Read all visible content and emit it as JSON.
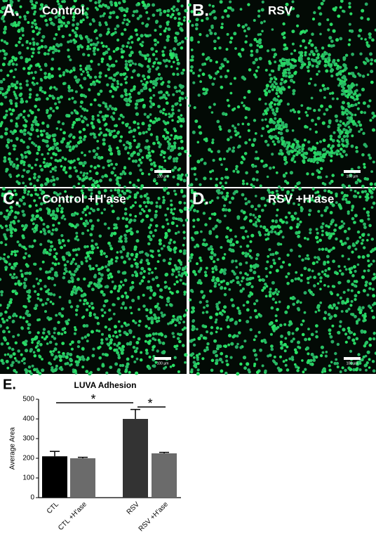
{
  "panels": [
    {
      "letter": "A.",
      "title": "Control",
      "scale_bar": "100 µm"
    },
    {
      "letter": "B.",
      "title": "RSV",
      "scale_bar": "100 µm"
    },
    {
      "letter": "C.",
      "title": "Control +H'ase",
      "scale_bar": "100 µm"
    },
    {
      "letter": "D.",
      "title": "RSV +H'ase",
      "scale_bar": "100 µm"
    }
  ],
  "chart_data": {
    "type": "bar",
    "panel_letter": "E.",
    "title": "LUVA Adhesion",
    "y_label": "Average Area",
    "categories": [
      "CTL",
      "CTL +H'ase",
      "RSV",
      "RSV +H'ase"
    ],
    "values": [
      210,
      200,
      400,
      225
    ],
    "errors": [
      25,
      5,
      48,
      5
    ],
    "colors": [
      "#000000",
      "#6b6b6b",
      "#333333",
      "#6b6b6b"
    ],
    "ylim": [
      0,
      500
    ],
    "yticks": [
      0,
      100,
      200,
      300,
      400,
      500
    ],
    "annotations": [
      "*",
      "*"
    ]
  }
}
